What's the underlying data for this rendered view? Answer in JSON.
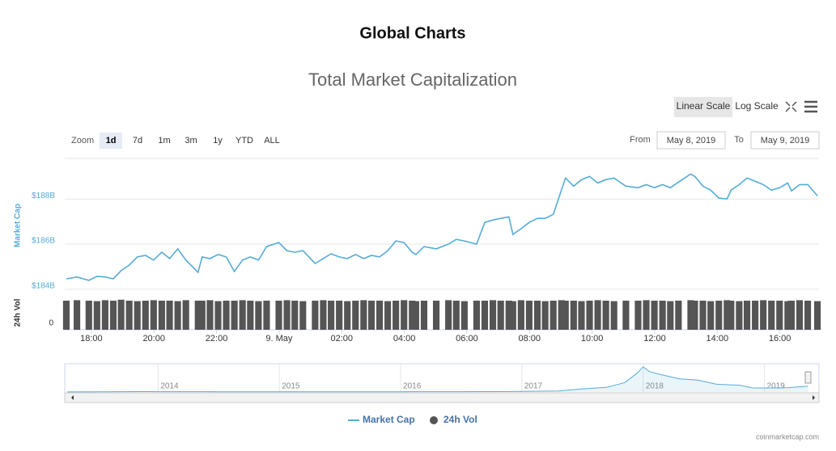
{
  "heading": "Global Charts",
  "controls": {
    "scale_buttons": [
      "Linear Scale",
      "Log Scale"
    ],
    "zoom_label": "Zoom",
    "zoom_buttons": [
      "1d",
      "7d",
      "1m",
      "3m",
      "1y",
      "YTD",
      "ALL"
    ],
    "from_label": "From",
    "from": "May 8, 2019",
    "to_label": "To",
    "to": "May 9, 2019"
  },
  "chart_data": {
    "type": "line",
    "title": "Total Market Capitalization",
    "xlim": [
      17.15,
      41.25
    ],
    "xticks": [
      {
        "value": 18,
        "label": "18:00"
      },
      {
        "value": 20,
        "label": "20:00"
      },
      {
        "value": 22,
        "label": "22:00"
      },
      {
        "value": 24,
        "label": "9. May"
      },
      {
        "value": 26,
        "label": "02:00"
      },
      {
        "value": 28,
        "label": "04:00"
      },
      {
        "value": 30,
        "label": "06:00"
      },
      {
        "value": 32,
        "label": "08:00"
      },
      {
        "value": 34,
        "label": "10:00"
      },
      {
        "value": 36,
        "label": "12:00"
      },
      {
        "value": 38,
        "label": "14:00"
      },
      {
        "value": 40,
        "label": "16:00"
      }
    ],
    "ylim": [
      183.85,
      189.8
    ],
    "yticks": [
      {
        "value": 184,
        "label": "$184B"
      },
      {
        "value": 186,
        "label": "$186B"
      },
      {
        "value": 188,
        "label": "$188B"
      }
    ],
    "y2lim": [
      0,
      70
    ],
    "y2ticks": [
      0
    ],
    "grid": true,
    "legend": "bottom",
    "series": [
      {
        "name": "Market Cap",
        "color": "#55acd8",
        "x": [
          17.2,
          17.54,
          17.92,
          18.18,
          18.44,
          18.7,
          18.95,
          19.21,
          19.47,
          19.73,
          19.99,
          20.25,
          20.5,
          20.76,
          21.02,
          21.41,
          21.54,
          21.79,
          22.05,
          22.31,
          22.57,
          22.83,
          23.08,
          23.34,
          23.6,
          23.99,
          24.25,
          24.5,
          24.76,
          25.15,
          25.41,
          25.66,
          25.92,
          26.18,
          26.44,
          26.7,
          26.95,
          27.21,
          27.47,
          27.73,
          27.99,
          28.25,
          28.37,
          28.63,
          29.02,
          29.41,
          29.66,
          29.92,
          30.31,
          30.57,
          30.83,
          31.08,
          31.34,
          31.47,
          31.73,
          31.99,
          32.25,
          32.5,
          32.76,
          33.02,
          33.15,
          33.41,
          33.66,
          33.92,
          34.18,
          34.44,
          34.7,
          35.08,
          35.47,
          35.73,
          35.99,
          36.25,
          36.5,
          36.76,
          37.15,
          37.28,
          37.54,
          37.79,
          38.05,
          38.31,
          38.44,
          38.7,
          38.95,
          39.21,
          39.47,
          39.73,
          39.99,
          40.25,
          40.37,
          40.63,
          40.89,
          41.2
        ],
        "values": [
          184.46,
          184.54,
          184.39,
          184.57,
          184.54,
          184.46,
          184.82,
          185.07,
          185.43,
          185.5,
          185.29,
          185.64,
          185.36,
          185.79,
          185.29,
          184.75,
          185.43,
          185.36,
          185.54,
          185.43,
          184.79,
          185.29,
          185.43,
          185.29,
          185.89,
          186.07,
          185.71,
          185.64,
          185.71,
          185.14,
          185.36,
          185.57,
          185.43,
          185.36,
          185.54,
          185.36,
          185.5,
          185.43,
          185.71,
          186.14,
          186.07,
          185.64,
          185.54,
          185.89,
          185.79,
          186.0,
          186.21,
          186.14,
          186.0,
          186.96,
          187.07,
          187.14,
          187.21,
          186.43,
          186.68,
          186.96,
          187.14,
          187.14,
          187.32,
          188.39,
          188.93,
          188.57,
          188.86,
          189.0,
          188.71,
          188.86,
          188.93,
          188.57,
          188.5,
          188.64,
          188.5,
          188.64,
          188.5,
          188.75,
          189.11,
          189.0,
          188.57,
          188.39,
          188.04,
          188.0,
          188.39,
          188.64,
          188.93,
          188.79,
          188.64,
          188.39,
          188.5,
          188.71,
          188.36,
          188.64,
          188.64,
          188.14
        ]
      },
      {
        "name": "24h Vol",
        "color": "#555555",
        "axis": "y2",
        "type": "bar",
        "values": [
          60,
          61,
          60,
          59,
          61,
          60,
          62,
          60,
          59,
          60,
          61,
          60,
          60,
          59,
          61,
          60,
          60,
          61,
          59,
          60,
          60,
          61,
          60,
          59,
          60,
          60,
          61,
          60,
          59,
          60,
          61,
          60,
          60,
          59,
          60,
          61,
          60,
          60,
          59,
          60,
          61,
          60,
          59,
          60,
          60,
          61,
          60,
          59,
          60,
          60,
          61,
          60,
          60,
          59,
          61,
          60,
          60,
          59,
          60,
          61,
          60,
          60,
          59,
          60,
          61,
          60,
          59,
          60,
          60,
          61,
          60,
          60,
          59,
          60,
          61,
          60,
          60,
          59,
          60,
          61,
          60,
          59,
          60,
          60,
          61,
          60,
          60,
          59,
          60,
          61,
          60,
          59
        ]
      }
    ],
    "navigator": {
      "xlim": [
        2013.23,
        2019.37
      ],
      "ylim": [
        0,
        900
      ],
      "xticks": [
        2014,
        2015,
        2016,
        2017,
        2018,
        2019
      ],
      "x": [
        2013.25,
        2013.9,
        2014.0,
        2014.5,
        2015.0,
        2015.5,
        2016.0,
        2016.5,
        2017.0,
        2017.3,
        2017.5,
        2017.7,
        2017.85,
        2017.95,
        2018.0,
        2018.05,
        2018.15,
        2018.3,
        2018.45,
        2018.6,
        2018.8,
        2018.9,
        2019.0,
        2019.2,
        2019.36
      ],
      "values": [
        1.5,
        12,
        10,
        7,
        4,
        5,
        7,
        10,
        18,
        30,
        100,
        150,
        300,
        600,
        800,
        650,
        550,
        420,
        380,
        250,
        210,
        130,
        125,
        140,
        188
      ]
    },
    "credits": "coinmarketcap.com"
  }
}
